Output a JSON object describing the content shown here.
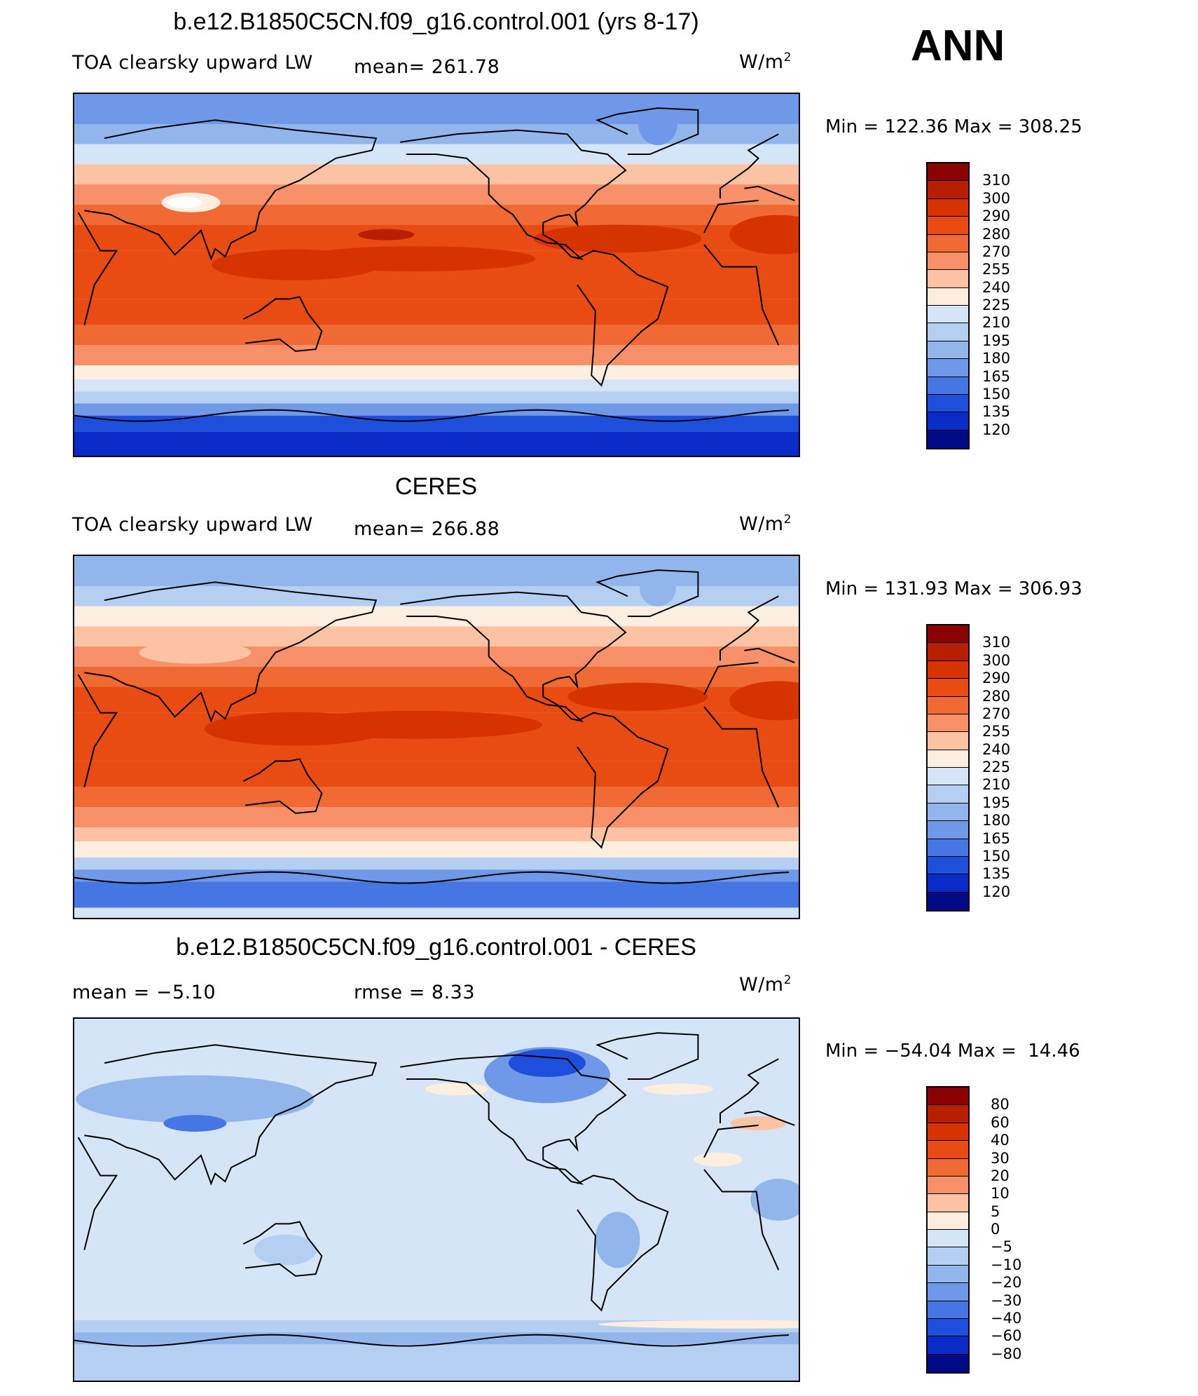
{
  "season": "ANN",
  "panels": [
    {
      "title": "b.e12.B1850C5CN.f09_g16.control.001 (yrs 8-17)",
      "left_label": "TOA clearsky upward LW",
      "mid_label": "mean= 261.78",
      "units_base": "W/m",
      "units_exp": "2",
      "minmax": "Min = 122.36 Max = 308.25",
      "colorbar_levels": [
        "310",
        "300",
        "290",
        "280",
        "270",
        "255",
        "240",
        "225",
        "210",
        "195",
        "180",
        "165",
        "150",
        "135",
        "120"
      ],
      "colorbar_colors": [
        "#8b0000",
        "#b81e00",
        "#d63300",
        "#e84c12",
        "#f06a33",
        "#f8916a",
        "#fbc2a4",
        "#fdeee0",
        "#d5e4f7",
        "#b5cff2",
        "#92b6ec",
        "#6f98e8",
        "#4676e4",
        "#1e4fdc",
        "#0b2bc8",
        "#000a85"
      ],
      "field": "control"
    },
    {
      "title": "CERES",
      "left_label": "TOA clearsky upward LW",
      "mid_label": "mean= 266.88",
      "units_base": "W/m",
      "units_exp": "2",
      "minmax": "Min = 131.93 Max = 306.93",
      "colorbar_levels": [
        "310",
        "300",
        "290",
        "280",
        "270",
        "255",
        "240",
        "225",
        "210",
        "195",
        "180",
        "165",
        "150",
        "135",
        "120"
      ],
      "colorbar_colors": [
        "#8b0000",
        "#b81e00",
        "#d63300",
        "#e84c12",
        "#f06a33",
        "#f8916a",
        "#fbc2a4",
        "#fdeee0",
        "#d5e4f7",
        "#b5cff2",
        "#92b6ec",
        "#6f98e8",
        "#4676e4",
        "#1e4fdc",
        "#0b2bc8",
        "#000a85"
      ],
      "field": "ceres"
    },
    {
      "title": "b.e12.B1850C5CN.f09_g16.control.001 - CERES",
      "left_label": "mean =   −5.10",
      "mid_label": "rmse =    8.33",
      "units_base": "W/m",
      "units_exp": "2",
      "minmax": "Min = −54.04 Max =  14.46",
      "colorbar_levels": [
        "80",
        "60",
        "40",
        "30",
        "20",
        "10",
        "5",
        "0",
        "−5",
        "−10",
        "−20",
        "−30",
        "−40",
        "−60",
        "−80"
      ],
      "colorbar_colors": [
        "#8b0000",
        "#b81e00",
        "#d63300",
        "#e84c12",
        "#f06a33",
        "#f8916a",
        "#fbc2a4",
        "#fdeee0",
        "#d5e4f7",
        "#b5cff2",
        "#92b6ec",
        "#6f98e8",
        "#4676e4",
        "#1e4fdc",
        "#0b2bc8",
        "#000a85"
      ],
      "field": "diff"
    }
  ]
}
